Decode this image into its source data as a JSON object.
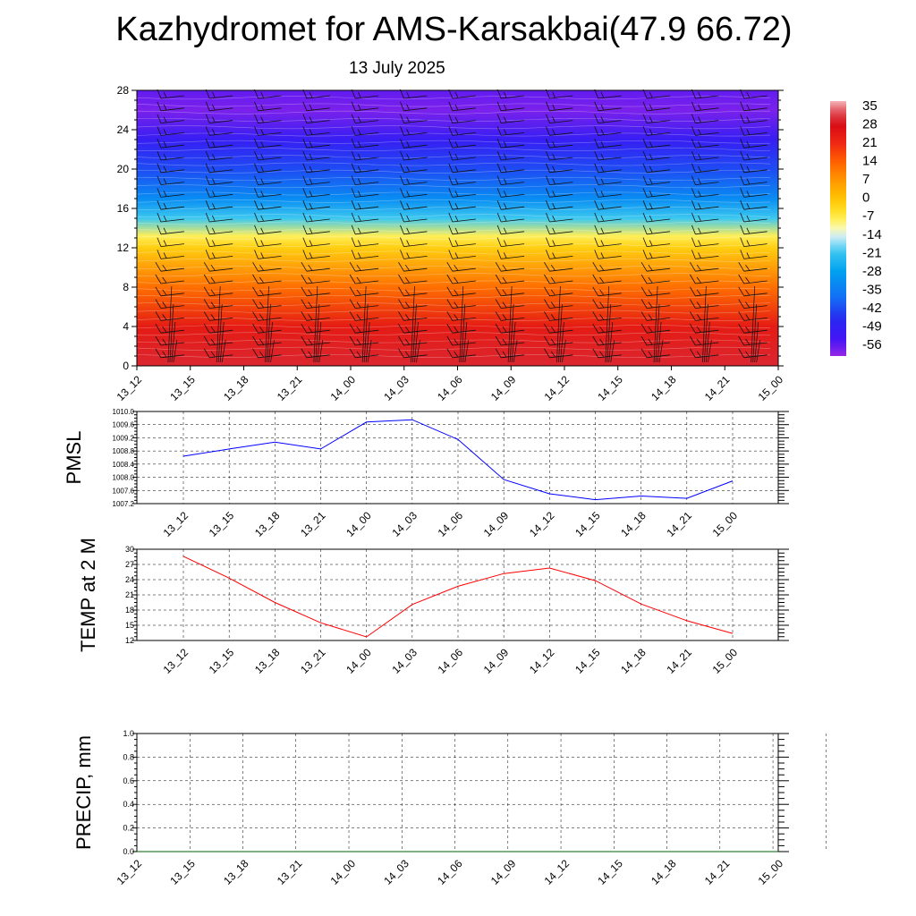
{
  "title": "Kazhydromet for AMS-Karsakbai(47.9 66.72)",
  "subtitle": "13 July 2025",
  "time_labels": [
    "13_12",
    "13_15",
    "13_18",
    "13_21",
    "14_00",
    "14_03",
    "14_06",
    "14_09",
    "14_12",
    "14_15",
    "14_18",
    "14_21",
    "15_00"
  ],
  "chart_data": [
    {
      "type": "heatmap",
      "description_text": "",
      "y_ticks": [
        "0",
        "4",
        "8",
        "12",
        "16",
        "20",
        "24",
        "28"
      ],
      "ylim": [
        0,
        28
      ],
      "colorbar_labels": [
        "35",
        "28",
        "21",
        "14",
        "7",
        "0",
        "-7",
        "-14",
        "-21",
        "-28",
        "-35",
        "-42",
        "-49",
        "-56"
      ],
      "colorbar_range": [
        -60,
        37
      ],
      "level_temperatures": [
        {
          "level": 0,
          "value": 30
        },
        {
          "level": 4,
          "value": 24
        },
        {
          "level": 8,
          "value": 12
        },
        {
          "level": 12,
          "value": -2
        },
        {
          "level": 13.2,
          "value": -8
        },
        {
          "level": 15,
          "value": -20
        },
        {
          "level": 17,
          "value": -32
        },
        {
          "level": 20,
          "value": -42
        },
        {
          "level": 23,
          "value": -50
        },
        {
          "level": 26,
          "value": -58
        },
        {
          "level": 28,
          "value": -56
        }
      ]
    },
    {
      "type": "line",
      "ylabel": "PMSL",
      "y_ticks": [
        "1007.2",
        "1007.6",
        "1008.0",
        "1008.4",
        "1008.8",
        "1009.2",
        "1009.6",
        "1010.0"
      ],
      "ylim": [
        1007.2,
        1010.0
      ],
      "color": "#0000ff",
      "x": [
        "13_12",
        "13_15",
        "13_18",
        "13_21",
        "14_00",
        "14_03",
        "14_06",
        "14_09",
        "14_12",
        "14_15",
        "14_18",
        "14_21",
        "15_00"
      ],
      "values": [
        1008.64,
        1008.86,
        1009.07,
        1008.86,
        1009.68,
        1009.75,
        1009.15,
        1007.93,
        1007.5,
        1007.32,
        1007.43,
        1007.36,
        1007.89
      ]
    },
    {
      "type": "line",
      "ylabel": "TEMP at 2 M",
      "y_ticks": [
        "12",
        "15",
        "18",
        "21",
        "24",
        "27",
        "30"
      ],
      "ylim": [
        12,
        30
      ],
      "color": "#ff0000",
      "x": [
        "13_12",
        "13_15",
        "13_18",
        "13_21",
        "14_00",
        "14_03",
        "14_06",
        "14_09",
        "14_12",
        "14_15",
        "14_18",
        "14_21",
        "15_00"
      ],
      "values": [
        28.6,
        24.3,
        19.5,
        15.5,
        12.7,
        19.1,
        22.7,
        25.2,
        26.3,
        23.8,
        19.2,
        15.9,
        13.4
      ]
    },
    {
      "type": "line",
      "ylabel": "PRECIP, mm",
      "y_ticks": [
        "0.0",
        "0.2",
        "0.4",
        "0.6",
        "0.8",
        "1.0"
      ],
      "ylim": [
        0,
        1
      ],
      "color": "#006400",
      "x": [
        "13_12",
        "13_15",
        "13_18",
        "13_21",
        "14_00",
        "14_03",
        "14_06",
        "14_09",
        "14_12",
        "14_15",
        "14_18",
        "14_21",
        "15_00"
      ],
      "values": [
        0,
        0,
        0,
        0,
        0,
        0,
        0,
        0,
        0,
        0,
        0,
        0,
        0
      ]
    }
  ]
}
